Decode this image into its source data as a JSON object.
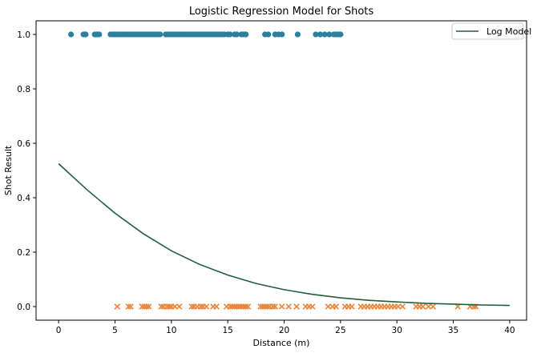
{
  "chart_data": {
    "type": "scatter",
    "title": "Logistic Regression Model for Shots",
    "xlabel": "Distance (m)",
    "ylabel": "Shot Result",
    "xlim": [
      -2,
      41.5
    ],
    "ylim": [
      -0.05,
      1.05
    ],
    "x_ticks": [
      0,
      5,
      10,
      15,
      20,
      25,
      30,
      35,
      40
    ],
    "y_ticks": [
      0.0,
      0.2,
      0.4,
      0.6,
      0.8,
      1.0
    ],
    "grid": false,
    "legend": {
      "placement": "top-right",
      "entries": [
        "Log Model"
      ]
    },
    "colors": {
      "goals": "#2e7f9e",
      "misses": "#e8843a",
      "model": "#1f5f3a"
    },
    "series": [
      {
        "kind": "scatter-circle",
        "y": 1.0,
        "x": [
          1.1,
          2.2,
          2.4,
          3.2,
          3.4,
          3.6,
          4.6,
          4.8,
          5.0,
          5.2,
          5.4,
          5.6,
          5.8,
          6.0,
          6.2,
          6.4,
          6.6,
          6.8,
          7.0,
          7.2,
          7.4,
          7.6,
          7.8,
          8.0,
          8.2,
          8.4,
          8.6,
          8.8,
          9.0,
          9.5,
          9.7,
          9.9,
          10.1,
          10.3,
          10.5,
          10.7,
          10.9,
          11.1,
          11.3,
          11.5,
          11.7,
          11.9,
          12.1,
          12.3,
          12.5,
          12.7,
          12.9,
          13.1,
          13.3,
          13.5,
          13.7,
          13.9,
          14.1,
          14.3,
          14.5,
          14.7,
          15.0,
          15.2,
          15.6,
          15.8,
          16.2,
          16.4,
          16.6,
          18.3,
          18.6,
          19.2,
          19.5,
          19.8,
          21.2,
          22.8,
          23.2,
          23.6,
          24.0,
          24.4,
          24.6,
          24.8,
          25.0
        ]
      },
      {
        "kind": "scatter-x",
        "y": 0.0,
        "x": [
          5.2,
          6.2,
          6.4,
          7.4,
          7.6,
          7.8,
          8.0,
          9.1,
          9.3,
          9.6,
          9.8,
          10.0,
          10.3,
          10.7,
          11.8,
          12.0,
          12.3,
          12.6,
          12.8,
          13.1,
          13.7,
          14.0,
          14.9,
          15.2,
          15.4,
          15.6,
          15.8,
          16.0,
          16.2,
          16.4,
          16.6,
          16.8,
          17.9,
          18.1,
          18.3,
          18.5,
          18.7,
          19.0,
          19.2,
          19.8,
          20.4,
          21.1,
          21.9,
          22.2,
          22.5,
          23.9,
          24.3,
          24.6,
          25.4,
          25.7,
          26.0,
          26.8,
          27.1,
          27.4,
          27.7,
          28.0,
          28.3,
          28.6,
          28.9,
          29.2,
          29.5,
          29.8,
          30.1,
          30.5,
          31.7,
          32.0,
          32.3,
          32.8,
          33.2,
          35.4,
          36.5,
          36.8,
          37.0
        ]
      },
      {
        "kind": "line",
        "name": "Log Model",
        "x": [
          0,
          2.5,
          5,
          7.5,
          10,
          12.5,
          15,
          17.5,
          20,
          22.5,
          25,
          27.5,
          30,
          32.5,
          35,
          37.5,
          40
        ],
        "y": [
          0.525,
          0.43,
          0.343,
          0.268,
          0.205,
          0.155,
          0.116,
          0.085,
          0.062,
          0.045,
          0.032,
          0.023,
          0.017,
          0.012,
          0.009,
          0.006,
          0.004
        ]
      }
    ]
  }
}
